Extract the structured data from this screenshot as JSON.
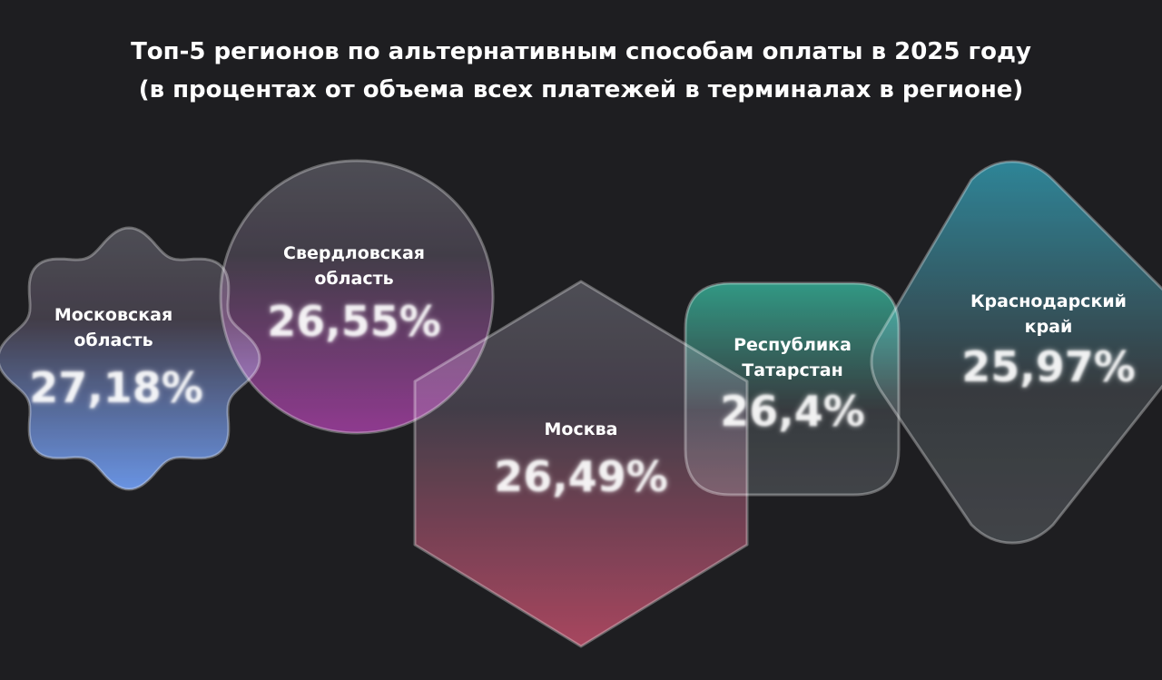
{
  "chart_data": {
    "type": "shapes",
    "title": "Топ-5 регионов по альтернативным способам оплаты в 2025 году",
    "subtitle": "(в процентах от объема всех платежей в терминалах в регионе)",
    "categories": [
      "Московская область",
      "Свердловская область",
      "Москва",
      "Республика Татарстан",
      "Краснодарский край"
    ],
    "values": [
      27.18,
      26.55,
      26.49,
      26.4,
      25.97
    ],
    "value_labels": [
      "27,18%",
      "26,55%",
      "26,49%",
      "26,4%",
      "25,97%"
    ],
    "colors": [
      "#5b8ff0",
      "#8a2288",
      "#a8304c",
      "#17957a",
      "#137d92"
    ]
  }
}
